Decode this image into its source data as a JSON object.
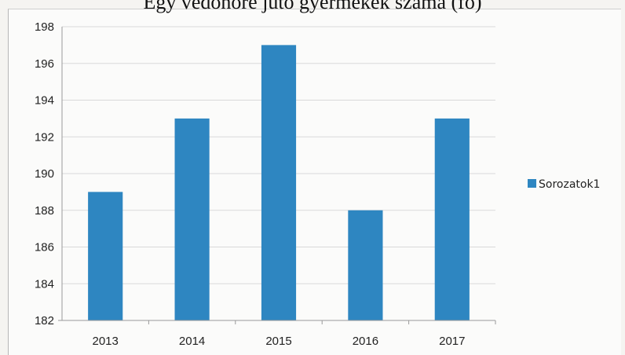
{
  "chart_data": {
    "type": "bar",
    "title": "Egy védőnőre jutó gyermekek száma (fő)",
    "categories": [
      "2013",
      "2014",
      "2015",
      "2016",
      "2017"
    ],
    "series": [
      {
        "name": "Sorozatok1",
        "values": [
          189,
          193,
          197,
          188,
          193
        ]
      }
    ],
    "ylim": [
      182,
      198
    ],
    "yticks": [
      182,
      184,
      186,
      188,
      190,
      192,
      194,
      196,
      198
    ],
    "xlabel": "",
    "ylabel": "",
    "grid": true,
    "legend_position": "right",
    "colors": {
      "bar": "#2e86c1",
      "grid": "#d9d9d9",
      "axis": "#9a9a9a"
    }
  }
}
